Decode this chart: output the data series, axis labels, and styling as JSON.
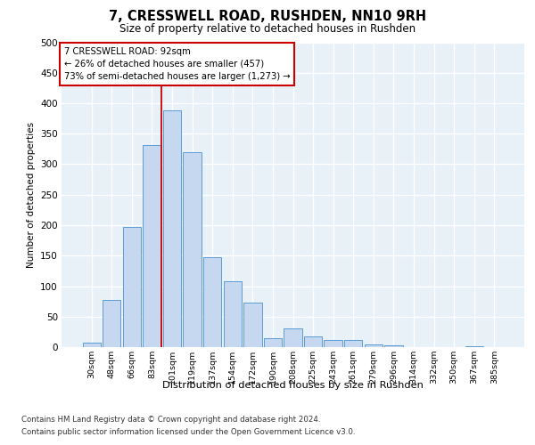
{
  "title": "7, CRESSWELL ROAD, RUSHDEN, NN10 9RH",
  "subtitle": "Size of property relative to detached houses in Rushden",
  "xlabel": "Distribution of detached houses by size in Rushden",
  "ylabel": "Number of detached properties",
  "categories": [
    "30sqm",
    "48sqm",
    "66sqm",
    "83sqm",
    "101sqm",
    "119sqm",
    "137sqm",
    "154sqm",
    "172sqm",
    "190sqm",
    "208sqm",
    "225sqm",
    "243sqm",
    "261sqm",
    "279sqm",
    "296sqm",
    "314sqm",
    "332sqm",
    "350sqm",
    "367sqm",
    "385sqm"
  ],
  "values": [
    8,
    78,
    197,
    332,
    388,
    320,
    148,
    108,
    73,
    15,
    30,
    18,
    11,
    12,
    5,
    3,
    0,
    0,
    0,
    2,
    0
  ],
  "bar_color": "#c5d8f0",
  "bar_edge_color": "#5b9bd5",
  "vline_index": 3,
  "vline_color": "#cc0000",
  "annotation_line1": "7 CRESSWELL ROAD: 92sqm",
  "annotation_line2": "← 26% of detached houses are smaller (457)",
  "annotation_line3": "73% of semi-detached houses are larger (1,273) →",
  "annotation_box_color": "#ffffff",
  "annotation_box_edge": "#cc0000",
  "bg_color": "#e8f0f8",
  "grid_color": "#ffffff",
  "footer_line1": "Contains HM Land Registry data © Crown copyright and database right 2024.",
  "footer_line2": "Contains public sector information licensed under the Open Government Licence v3.0.",
  "ylim": [
    0,
    500
  ],
  "yticks": [
    0,
    50,
    100,
    150,
    200,
    250,
    300,
    350,
    400,
    450,
    500
  ]
}
